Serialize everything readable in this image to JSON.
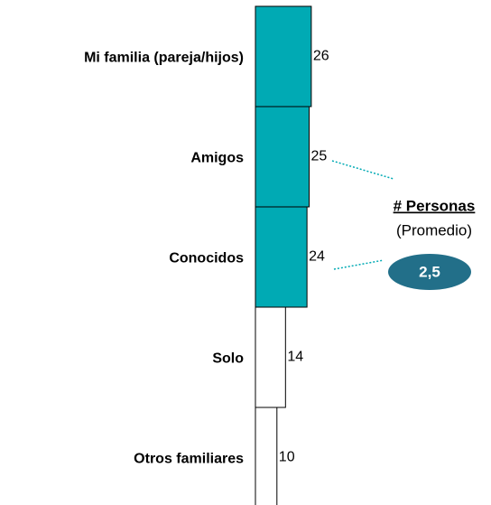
{
  "chart_data": {
    "type": "barh",
    "categories": [
      "Mi familia (pareja/hijos)",
      "Amigos",
      "Conocidos",
      "Solo",
      "Otros familiares"
    ],
    "values": [
      26,
      25,
      24,
      14,
      10
    ],
    "colors": [
      "#00aab4",
      "#00aab4",
      "#00aab4",
      "#ffffff",
      "#ffffff"
    ],
    "annotation": {
      "title": "# Personas",
      "subtitle": "(Promedio)",
      "value": "2,5"
    }
  }
}
